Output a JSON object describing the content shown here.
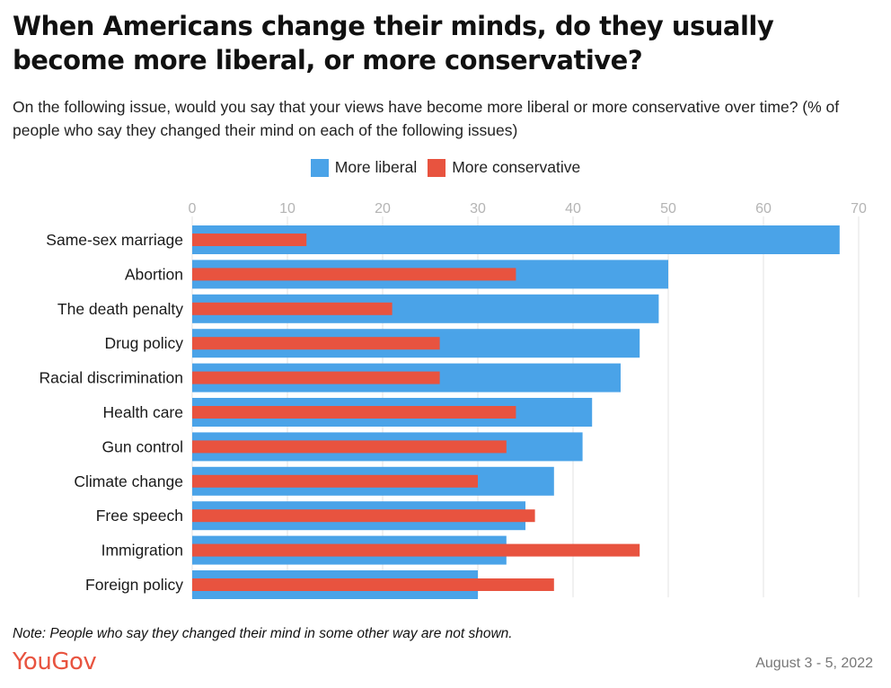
{
  "header": {
    "title": "When Americans change their minds, do they usually become more liberal, or more conservative?",
    "subtitle": "On the following issue, would you say that your views have become more liberal or more conservative over time? (% of people who say they changed their mind on each of the following issues)"
  },
  "footer": {
    "note": "Note: People who say they changed their mind in some other way are not shown.",
    "logo": "YouGov",
    "date": "August 3 - 5, 2022"
  },
  "colors": {
    "liberal": "#4aa3e8",
    "conservative": "#e8533f",
    "logo": "#e8533f",
    "grid": "#e3e3e3",
    "tick": "#b4b4b4"
  },
  "chart_data": {
    "type": "bar",
    "orientation": "horizontal",
    "title": "When Americans change their minds, do they usually become more liberal, or more conservative?",
    "xlim": [
      0,
      70
    ],
    "x_ticks": [
      0,
      10,
      20,
      30,
      40,
      50,
      60,
      70
    ],
    "grid": true,
    "legend_position": "top-center",
    "categories": [
      "Same-sex marriage",
      "Abortion",
      "The death penalty",
      "Drug policy",
      "Racial discrimination",
      "Health care",
      "Gun control",
      "Climate change",
      "Free speech",
      "Immigration",
      "Foreign policy"
    ],
    "series": [
      {
        "name": "More liberal",
        "values": [
          68,
          50,
          49,
          47,
          45,
          42,
          41,
          38,
          35,
          33,
          30
        ]
      },
      {
        "name": "More conservative",
        "values": [
          12,
          34,
          21,
          26,
          26,
          34,
          33,
          30,
          36,
          47,
          38
        ]
      }
    ]
  }
}
